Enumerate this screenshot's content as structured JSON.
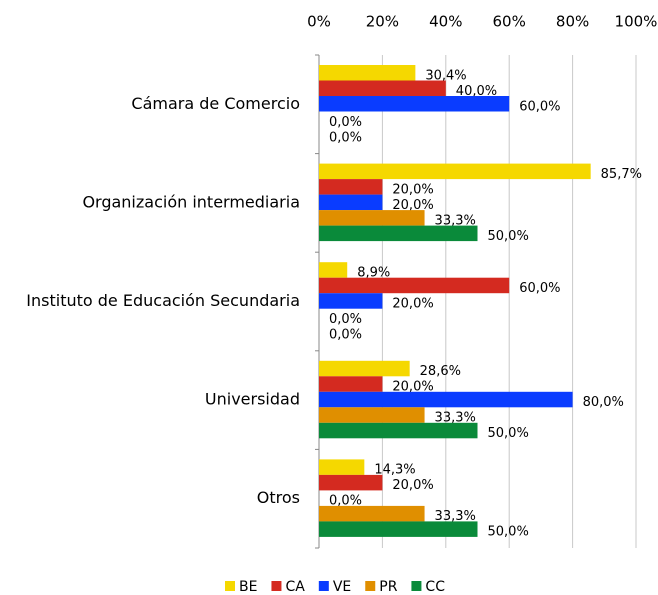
{
  "chart_data": {
    "type": "bar",
    "orientation": "horizontal",
    "categories": [
      "Cámara de Comercio",
      "Organización intermediaria",
      "Instituto de Educación Secundaria",
      "Universidad",
      "Otros"
    ],
    "series": [
      {
        "name": "BE",
        "color": "#f5d800",
        "values": [
          30.4,
          85.7,
          8.9,
          28.6,
          14.3
        ],
        "value_labels": [
          "30,4%",
          "85,7%",
          "8,9%",
          "28,6%",
          "14,3%"
        ]
      },
      {
        "name": "CA",
        "color": "#d42a20",
        "values": [
          40,
          20,
          60,
          20,
          20
        ],
        "value_labels": [
          "40,0%",
          "20,0%",
          "60,0%",
          "20,0%",
          "20,0%"
        ]
      },
      {
        "name": "VE",
        "color": "#0a3cff",
        "values": [
          60,
          20,
          20,
          80,
          0
        ],
        "value_labels": [
          "60,0%",
          "20,0%",
          "20,0%",
          "80,0%",
          "0,0%"
        ]
      },
      {
        "name": "PR",
        "color": "#e08f00",
        "values": [
          0,
          33.3,
          0,
          33.3,
          33.3
        ],
        "value_labels": [
          "0,0%",
          "33,3%",
          "0,0%",
          "33,3%",
          "33,3%"
        ]
      },
      {
        "name": "CC",
        "color": "#0a8a3a",
        "values": [
          0,
          50,
          0,
          50,
          50
        ],
        "value_labels": [
          "0,0%",
          "50,0%",
          "0,0%",
          "50,0%",
          "50,0%"
        ]
      }
    ],
    "xlim": [
      0,
      100
    ],
    "xticks": [
      {
        "value": 0,
        "label": "0%"
      },
      {
        "value": 20,
        "label": "20%"
      },
      {
        "value": 40,
        "label": "40%"
      },
      {
        "value": 60,
        "label": "60%"
      },
      {
        "value": 80,
        "label": "80%"
      },
      {
        "value": 100,
        "label": "100%"
      }
    ],
    "grid": true,
    "legend": "bottom"
  }
}
